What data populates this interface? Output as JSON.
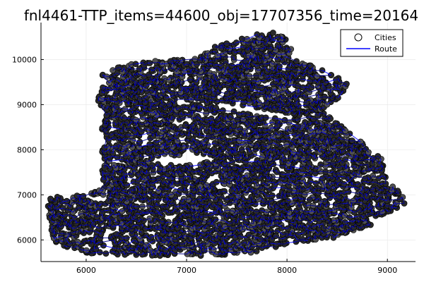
{
  "chart_data": {
    "type": "scatter",
    "title": "fnl4461-TTP_items=44600_obj=17707356_time=20164",
    "xlabel": "",
    "ylabel": "",
    "xlim": [
      5550,
      9280
    ],
    "ylim": [
      5520,
      10820
    ],
    "x_ticks": [
      6000,
      7000,
      8000,
      9000
    ],
    "y_ticks": [
      6000,
      7000,
      8000,
      9000,
      10000
    ],
    "x_tick_labels": [
      "6000",
      "7000",
      "8000",
      "9000"
    ],
    "y_tick_labels": [
      "6000",
      "7000",
      "8000",
      "9000",
      "10000"
    ],
    "grid": true,
    "legend": {
      "placement": "top-right",
      "entries": [
        "Cities",
        "Route"
      ]
    },
    "series": [
      {
        "name": "Cities",
        "kind": "scatter",
        "marker": "circle",
        "color": "#2a2a2a",
        "approx_count": 4461
      },
      {
        "name": "Route",
        "kind": "line",
        "color": "#0000ff"
      }
    ],
    "region_outline": [
      [
        5620,
        6900
      ],
      [
        5700,
        6960
      ],
      [
        5900,
        7000
      ],
      [
        6100,
        7080
      ],
      [
        6200,
        7200
      ],
      [
        6130,
        7500
      ],
      [
        6200,
        7700
      ],
      [
        6150,
        8000
      ],
      [
        6200,
        8200
      ],
      [
        6150,
        8500
      ],
      [
        6200,
        8800
      ],
      [
        6100,
        9150
      ],
      [
        6200,
        9500
      ],
      [
        6150,
        9650
      ],
      [
        6300,
        9850
      ],
      [
        6700,
        9980
      ],
      [
        7000,
        10000
      ],
      [
        7300,
        10300
      ],
      [
        7600,
        10500
      ],
      [
        7800,
        10650
      ],
      [
        7950,
        10600
      ],
      [
        8050,
        10300
      ],
      [
        8050,
        10000
      ],
      [
        8300,
        9850
      ],
      [
        8400,
        9700
      ],
      [
        8600,
        9500
      ],
      [
        8550,
        9200
      ],
      [
        8350,
        8900
      ],
      [
        8500,
        8600
      ],
      [
        8700,
        8300
      ],
      [
        8800,
        8000
      ],
      [
        8950,
        7800
      ],
      [
        9000,
        7300
      ],
      [
        9150,
        7000
      ],
      [
        9200,
        6800
      ],
      [
        9000,
        6500
      ],
      [
        8700,
        6200
      ],
      [
        8400,
        6000
      ],
      [
        8000,
        5900
      ],
      [
        7600,
        5700
      ],
      [
        7200,
        5650
      ],
      [
        6600,
        5650
      ],
      [
        6000,
        5700
      ],
      [
        5700,
        5900
      ],
      [
        5650,
        6200
      ],
      [
        5620,
        6600
      ]
    ],
    "inner_gaps": [
      [
        [
          7200,
          9000
        ],
        [
          7500,
          8850
        ],
        [
          7900,
          8700
        ],
        [
          8300,
          8650
        ],
        [
          7900,
          8850
        ],
        [
          7400,
          9050
        ]
      ],
      [
        [
          6600,
          7700
        ],
        [
          7000,
          7650
        ],
        [
          7400,
          7800
        ],
        [
          7050,
          7900
        ],
        [
          6700,
          7850
        ]
      ]
    ],
    "colors": {
      "points": "#2a2a2a",
      "points_highlight": "#505050",
      "route": "#0000ff",
      "route_dark": "#00008b"
    }
  }
}
